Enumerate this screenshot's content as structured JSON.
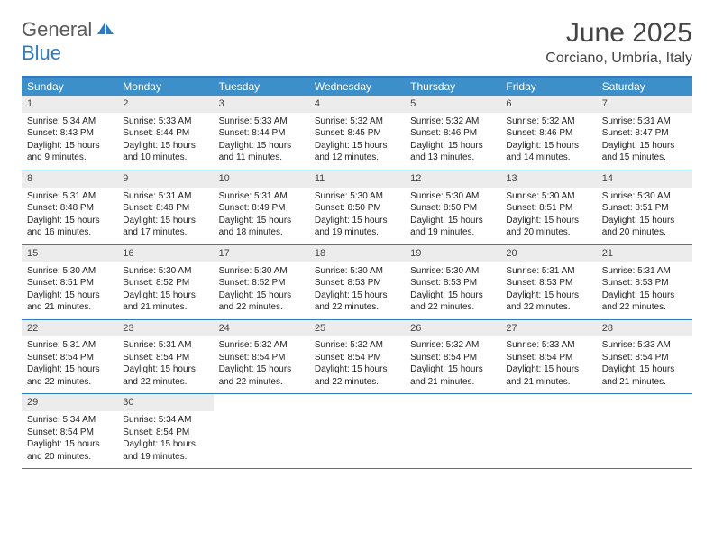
{
  "brand": {
    "part1": "General",
    "part2": "Blue"
  },
  "title": "June 2025",
  "location": "Corciano, Umbria, Italy",
  "colors": {
    "header_bg": "#3d8fc9",
    "border": "#2f7bbf",
    "daynum_bg": "#ececec",
    "text": "#333333"
  },
  "dayNames": [
    "Sunday",
    "Monday",
    "Tuesday",
    "Wednesday",
    "Thursday",
    "Friday",
    "Saturday"
  ],
  "days": [
    {
      "n": 1,
      "sr": "5:34 AM",
      "ss": "8:43 PM",
      "dl": "15 hours and 9 minutes."
    },
    {
      "n": 2,
      "sr": "5:33 AM",
      "ss": "8:44 PM",
      "dl": "15 hours and 10 minutes."
    },
    {
      "n": 3,
      "sr": "5:33 AM",
      "ss": "8:44 PM",
      "dl": "15 hours and 11 minutes."
    },
    {
      "n": 4,
      "sr": "5:32 AM",
      "ss": "8:45 PM",
      "dl": "15 hours and 12 minutes."
    },
    {
      "n": 5,
      "sr": "5:32 AM",
      "ss": "8:46 PM",
      "dl": "15 hours and 13 minutes."
    },
    {
      "n": 6,
      "sr": "5:32 AM",
      "ss": "8:46 PM",
      "dl": "15 hours and 14 minutes."
    },
    {
      "n": 7,
      "sr": "5:31 AM",
      "ss": "8:47 PM",
      "dl": "15 hours and 15 minutes."
    },
    {
      "n": 8,
      "sr": "5:31 AM",
      "ss": "8:48 PM",
      "dl": "15 hours and 16 minutes."
    },
    {
      "n": 9,
      "sr": "5:31 AM",
      "ss": "8:48 PM",
      "dl": "15 hours and 17 minutes."
    },
    {
      "n": 10,
      "sr": "5:31 AM",
      "ss": "8:49 PM",
      "dl": "15 hours and 18 minutes."
    },
    {
      "n": 11,
      "sr": "5:30 AM",
      "ss": "8:50 PM",
      "dl": "15 hours and 19 minutes."
    },
    {
      "n": 12,
      "sr": "5:30 AM",
      "ss": "8:50 PM",
      "dl": "15 hours and 19 minutes."
    },
    {
      "n": 13,
      "sr": "5:30 AM",
      "ss": "8:51 PM",
      "dl": "15 hours and 20 minutes."
    },
    {
      "n": 14,
      "sr": "5:30 AM",
      "ss": "8:51 PM",
      "dl": "15 hours and 20 minutes."
    },
    {
      "n": 15,
      "sr": "5:30 AM",
      "ss": "8:51 PM",
      "dl": "15 hours and 21 minutes."
    },
    {
      "n": 16,
      "sr": "5:30 AM",
      "ss": "8:52 PM",
      "dl": "15 hours and 21 minutes."
    },
    {
      "n": 17,
      "sr": "5:30 AM",
      "ss": "8:52 PM",
      "dl": "15 hours and 22 minutes."
    },
    {
      "n": 18,
      "sr": "5:30 AM",
      "ss": "8:53 PM",
      "dl": "15 hours and 22 minutes."
    },
    {
      "n": 19,
      "sr": "5:30 AM",
      "ss": "8:53 PM",
      "dl": "15 hours and 22 minutes."
    },
    {
      "n": 20,
      "sr": "5:31 AM",
      "ss": "8:53 PM",
      "dl": "15 hours and 22 minutes."
    },
    {
      "n": 21,
      "sr": "5:31 AM",
      "ss": "8:53 PM",
      "dl": "15 hours and 22 minutes."
    },
    {
      "n": 22,
      "sr": "5:31 AM",
      "ss": "8:54 PM",
      "dl": "15 hours and 22 minutes."
    },
    {
      "n": 23,
      "sr": "5:31 AM",
      "ss": "8:54 PM",
      "dl": "15 hours and 22 minutes."
    },
    {
      "n": 24,
      "sr": "5:32 AM",
      "ss": "8:54 PM",
      "dl": "15 hours and 22 minutes."
    },
    {
      "n": 25,
      "sr": "5:32 AM",
      "ss": "8:54 PM",
      "dl": "15 hours and 22 minutes."
    },
    {
      "n": 26,
      "sr": "5:32 AM",
      "ss": "8:54 PM",
      "dl": "15 hours and 21 minutes."
    },
    {
      "n": 27,
      "sr": "5:33 AM",
      "ss": "8:54 PM",
      "dl": "15 hours and 21 minutes."
    },
    {
      "n": 28,
      "sr": "5:33 AM",
      "ss": "8:54 PM",
      "dl": "15 hours and 21 minutes."
    },
    {
      "n": 29,
      "sr": "5:34 AM",
      "ss": "8:54 PM",
      "dl": "15 hours and 20 minutes."
    },
    {
      "n": 30,
      "sr": "5:34 AM",
      "ss": "8:54 PM",
      "dl": "15 hours and 19 minutes."
    }
  ],
  "labels": {
    "sunrise": "Sunrise:",
    "sunset": "Sunset:",
    "daylight": "Daylight:"
  }
}
